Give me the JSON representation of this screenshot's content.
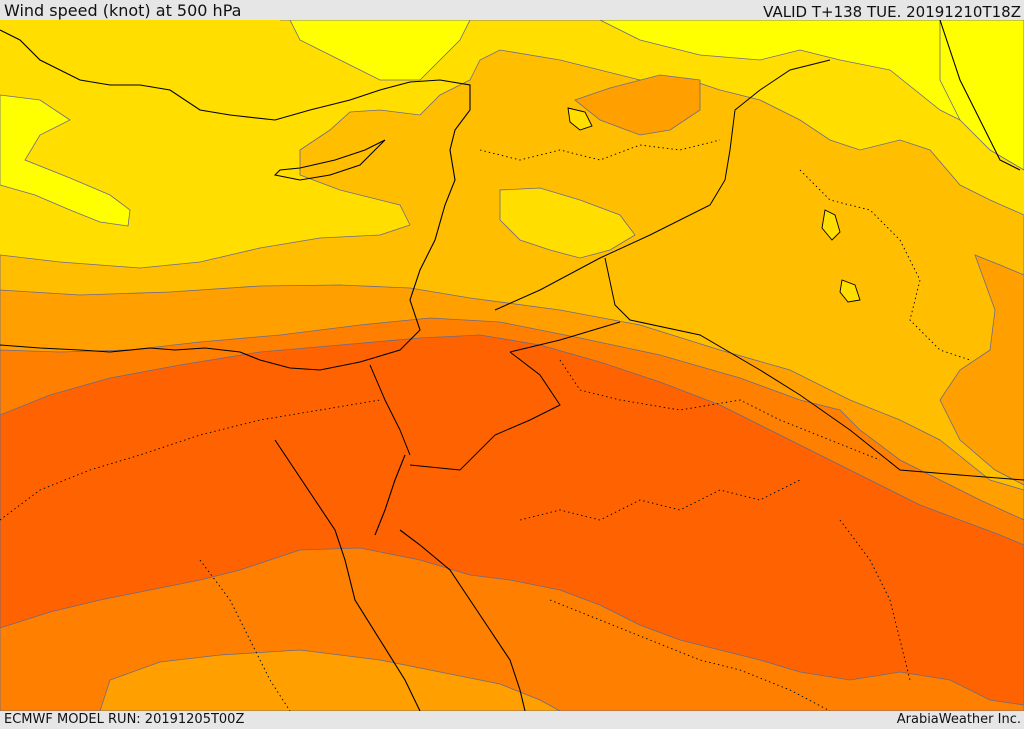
{
  "header": {
    "title": "Wind speed (knot) at 500 hPa",
    "valid_time": "VALID T+138 TUE. 20191210T18Z"
  },
  "footer": {
    "model_run": "ECMWF MODEL RUN: 20191205T00Z",
    "credit": "ArabiaWeather Inc."
  },
  "map": {
    "variable": "wind speed",
    "level": "500 hPa",
    "shading_colors": [
      "#ffff00",
      "#ffde00",
      "#ffbf00",
      "#ffa000",
      "#ff8000",
      "#ff6200"
    ]
  }
}
